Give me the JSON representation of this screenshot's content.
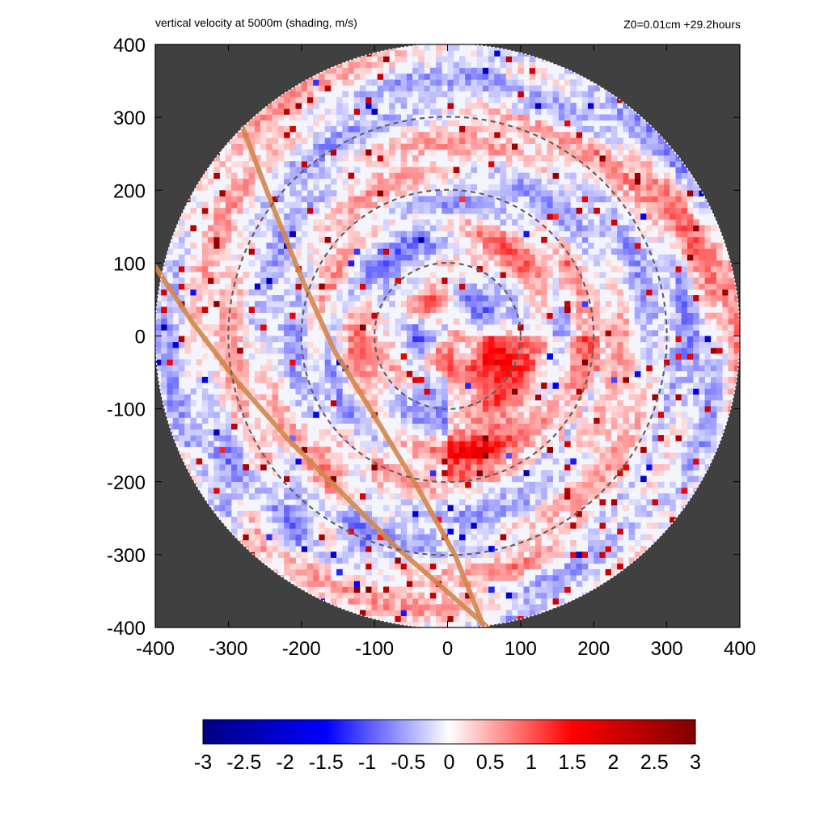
{
  "header": {
    "title": "vertical velocity at 5000m (shading, m/s)",
    "subtitle": "Z0=0.01cm  +29.2hours"
  },
  "chart_data": {
    "type": "heatmap",
    "title": "vertical velocity at 5000m (shading, m/s)",
    "subtitle": "Z0=0.01cm  +29.2hours",
    "xlim": [
      -400,
      400
    ],
    "ylim": [
      -400,
      400
    ],
    "x_ticks": [
      "-400",
      "-300",
      "-200",
      "-100",
      "0",
      "100",
      "200",
      "300",
      "400"
    ],
    "y_ticks": [
      "400",
      "300",
      "200",
      "100",
      "0",
      "-100",
      "-200",
      "-300",
      "-400"
    ],
    "x_tick_values": [
      -400,
      -300,
      -200,
      -100,
      0,
      100,
      200,
      300,
      400
    ],
    "y_tick_values": [
      400,
      300,
      200,
      100,
      0,
      -100,
      -200,
      -300,
      -400
    ],
    "domain_radius": 400,
    "range_rings": [
      100,
      200,
      300
    ],
    "outside_color": "#404040",
    "track_color": "#d2874a",
    "tracks": [
      {
        "points": [
          [
            -280,
            285
          ],
          [
            -240,
            180
          ],
          [
            -200,
            80
          ],
          [
            -155,
            -20
          ],
          [
            -100,
            -110
          ],
          [
            -40,
            -210
          ],
          [
            10,
            -300
          ],
          [
            50,
            -400
          ]
        ]
      },
      {
        "points": [
          [
            -400,
            95
          ],
          [
            -350,
            20
          ],
          [
            -290,
            -60
          ],
          [
            -220,
            -140
          ],
          [
            -150,
            -210
          ],
          [
            -70,
            -290
          ],
          [
            10,
            -360
          ],
          [
            55,
            -400
          ]
        ]
      }
    ],
    "colorbar": {
      "min": -3,
      "max": 3,
      "tick_labels": [
        "-3",
        "-2.5",
        "-2",
        "-1.5",
        "-1",
        "-0.5",
        "0",
        "0.5",
        "1",
        "1.5",
        "2",
        "2.5",
        "3"
      ],
      "tick_values": [
        -3,
        -2.5,
        -2,
        -1.5,
        -1,
        -0.5,
        0,
        0.5,
        1,
        1.5,
        2,
        2.5,
        3
      ],
      "colors": [
        "#000080",
        "#0000ff",
        "#ffffff",
        "#ff0000",
        "#800000"
      ]
    }
  }
}
